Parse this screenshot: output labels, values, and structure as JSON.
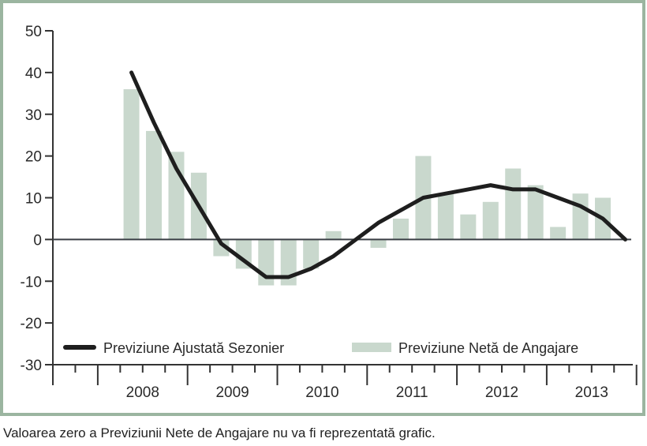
{
  "chart_data": {
    "type": "bar+line",
    "ylim": [
      -30,
      50
    ],
    "yticks": [
      50,
      40,
      30,
      20,
      10,
      0,
      -10,
      -20,
      -30
    ],
    "year_labels": [
      "2008",
      "2009",
      "2010",
      "2011",
      "2012",
      "2013"
    ],
    "quarters": [
      "2008Q2",
      "2008Q3",
      "2008Q4",
      "2009Q1",
      "2009Q2",
      "2009Q3",
      "2009Q4",
      "2010Q1",
      "2010Q2",
      "2010Q3",
      "2010Q4",
      "2011Q1",
      "2011Q2",
      "2011Q3",
      "2011Q4",
      "2012Q1",
      "2012Q2",
      "2012Q3",
      "2012Q4",
      "2013Q1",
      "2013Q2",
      "2013Q3",
      "2013Q4"
    ],
    "series": [
      {
        "name": "Previziune Ajustată Sezonier",
        "type": "line",
        "color": "#1e1e1e",
        "values": [
          40,
          28,
          17,
          8,
          -1,
          -5,
          -9,
          -9,
          -7,
          -4,
          0,
          4,
          7,
          10,
          11,
          12,
          13,
          12,
          12,
          10,
          8,
          5,
          0
        ]
      },
      {
        "name": "Previziune Netă de Angajare",
        "type": "bar",
        "color": "#c9d8cd",
        "values": [
          36,
          26,
          21,
          16,
          -4,
          -7,
          -11,
          -11,
          -7,
          2,
          0,
          -2,
          5,
          20,
          11,
          6,
          9,
          17,
          13,
          3,
          11,
          10,
          null
        ]
      }
    ],
    "legend_placement": "bottom",
    "grid": false
  },
  "caption": "Valoarea zero a Previziunii Nete de Angajare nu va fi reprezentată grafic.",
  "colors": {
    "frame": "#9bb5a0",
    "bar": "#c9d8cd",
    "line": "#1e1e1e"
  }
}
